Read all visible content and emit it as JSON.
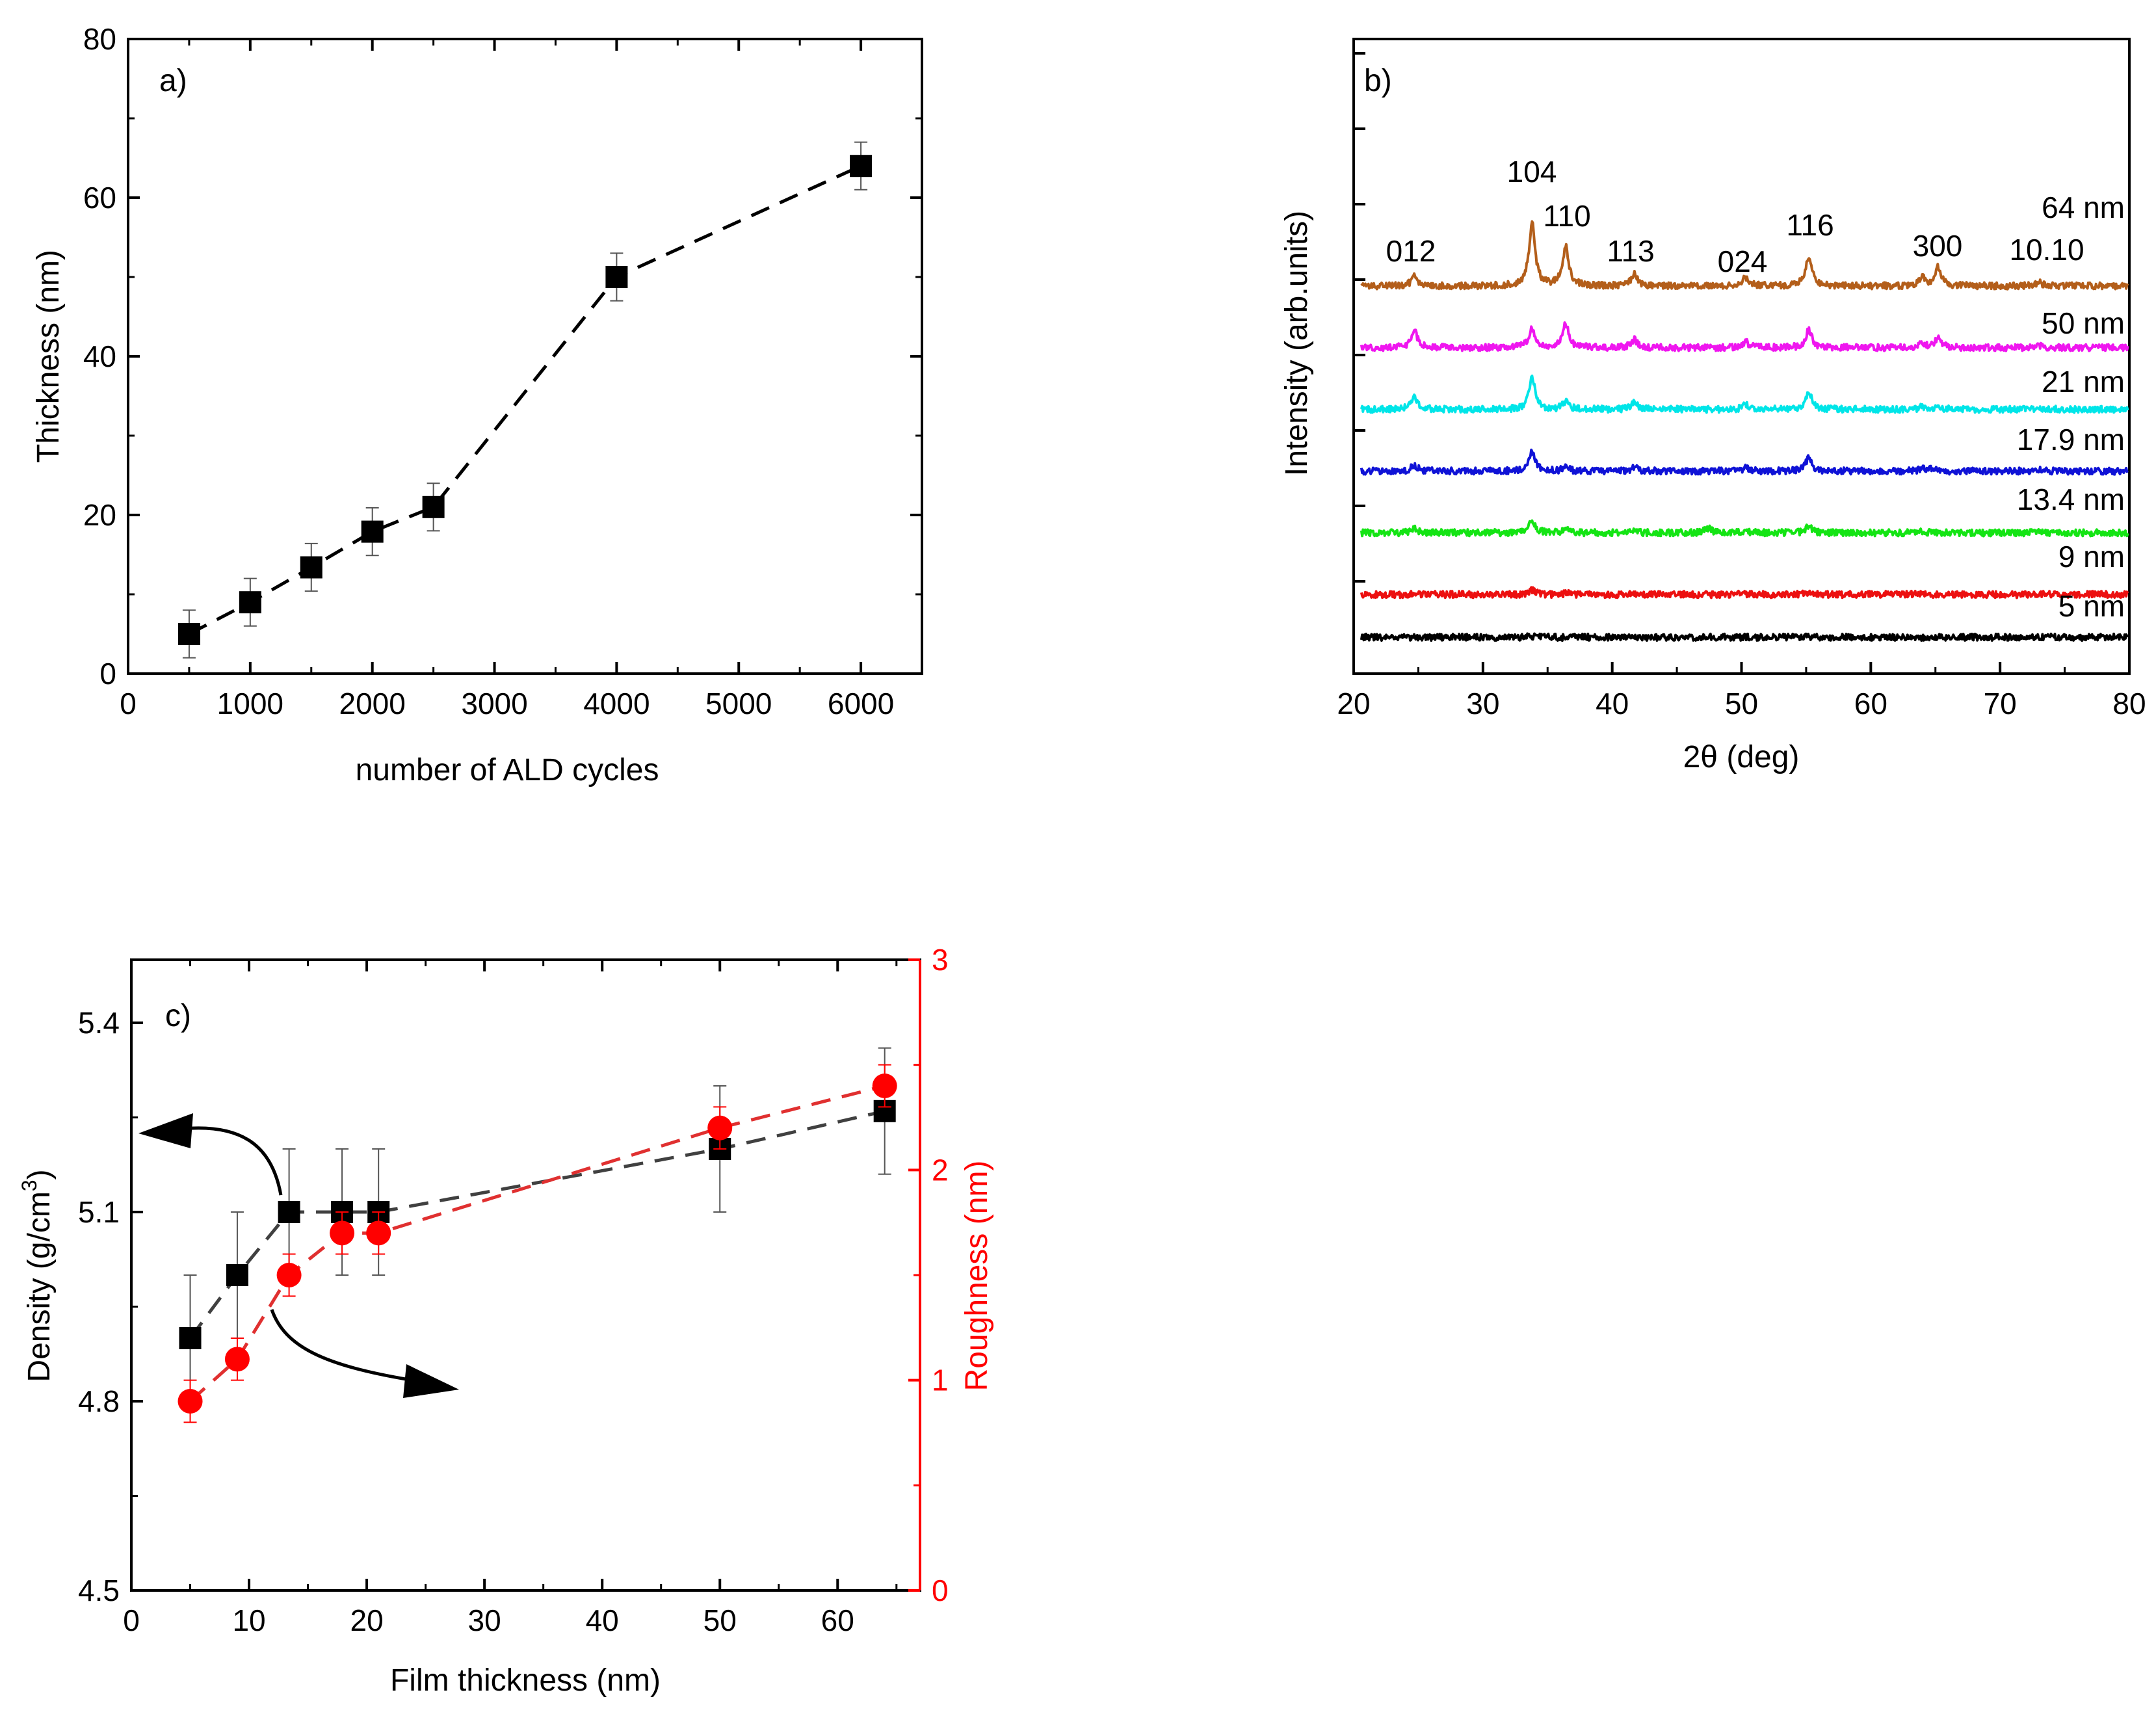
{
  "chart_data": [
    {
      "type": "line",
      "panel_label": "a)",
      "xlabel": "number of ALD cycles",
      "ylabel": "Thickness (nm)",
      "xlim": [
        0,
        6500
      ],
      "ylim": [
        0,
        80
      ],
      "xticks": [
        0,
        1000,
        2000,
        3000,
        4000,
        5000,
        6000
      ],
      "yticks": [
        0,
        20,
        40,
        60,
        80
      ],
      "line_style": "dashed",
      "marker": "square",
      "series": [
        {
          "name": "Thickness",
          "color": "#000000",
          "x": [
            500,
            1000,
            1500,
            2000,
            2500,
            4000,
            6000
          ],
          "y": [
            5,
            9,
            13.4,
            17.9,
            21,
            50,
            64
          ],
          "yerr": [
            3,
            3,
            3,
            3,
            3,
            3,
            3
          ]
        }
      ]
    },
    {
      "type": "line",
      "panel_label": "b)",
      "xlabel": "2θ (deg)",
      "ylabel": "Intensity (arb.units)",
      "xlim": [
        20,
        80
      ],
      "xticks": [
        20,
        30,
        40,
        50,
        60,
        70,
        80
      ],
      "ytick_count": 8,
      "peaks": [
        {
          "label": "012",
          "x": 24.7
        },
        {
          "label": "104",
          "x": 33.8
        },
        {
          "label": "110",
          "x": 36.4
        },
        {
          "label": "113",
          "x": 41.7
        },
        {
          "label": "024",
          "x": 50.3
        },
        {
          "label": "116",
          "x": 55.2
        },
        {
          "label": "300",
          "x": 64.0
        },
        {
          "label": "10.10",
          "x": 73.0
        }
      ],
      "series": [
        {
          "name": "64 nm",
          "color": "#b35e1a",
          "baseline": 7.4,
          "peak_heights": [
            1.5,
            9.5,
            6.0,
            1.8,
            1.2,
            4.5,
            1.2,
            0.6
          ],
          "extra_peaks": [
            [
              65.2,
              2.8
            ]
          ]
        },
        {
          "name": "50 nm",
          "color": "#ef16ef",
          "baseline": 6.1,
          "peak_heights": [
            2.5,
            3.0,
            3.6,
            1.2,
            0.9,
            2.7,
            0.7,
            0.3
          ],
          "extra_peaks": [
            [
              65.2,
              1.5
            ]
          ]
        },
        {
          "name": "21 nm",
          "color": "#00e5e8",
          "baseline": 4.8,
          "peak_heights": [
            2.0,
            4.8,
            1.1,
            1.0,
            0.7,
            2.6,
            0.4,
            0.2
          ],
          "extra_peaks": [
            [
              65.2,
              0.5
            ]
          ]
        },
        {
          "name": "17.9 nm",
          "color": "#0f12d6",
          "baseline": 3.5,
          "peak_heights": [
            0.9,
            3.0,
            0.6,
            0.6,
            0.5,
            2.0,
            0.3,
            0.2
          ],
          "extra_peaks": [
            [
              64.5,
              0.4
            ]
          ]
        },
        {
          "name": "13.4 nm",
          "color": "#14e414",
          "baseline": 2.2,
          "peak_heights": [
            0.6,
            1.9,
            0.4,
            0.3,
            0.3,
            1.0,
            0.3,
            0.1
          ],
          "extra_peaks": [
            [
              47.4,
              0.7
            ]
          ]
        },
        {
          "name": "9 nm",
          "color": "#ec1010",
          "baseline": 0.9,
          "peak_heights": [
            0.1,
            0.6,
            0.2,
            0.1,
            0.1,
            0.3,
            0.1,
            0.1
          ],
          "extra_peaks": []
        },
        {
          "name": "5 nm",
          "color": "#000000",
          "baseline": 0.0,
          "peak_heights": [
            0.0,
            0.1,
            0.0,
            0.0,
            0.0,
            0.1,
            0.0,
            0.0
          ],
          "extra_peaks": []
        }
      ]
    },
    {
      "type": "line",
      "panel_label": "c)",
      "xlabel": "Film thickness (nm)",
      "ylabel_left_main": "Density (g/cm",
      "ylabel_left_sup": "3",
      "ylabel_left_tail": ")",
      "ylabel_right": "Roughness (nm)",
      "xlim": [
        0,
        67
      ],
      "ylim_left": [
        4.5,
        5.5
      ],
      "ylim_right": [
        0,
        3
      ],
      "xticks": [
        0,
        10,
        20,
        30,
        40,
        50,
        60
      ],
      "yticks_left": [
        "4.5",
        "4.8",
        "5.1",
        "5.4"
      ],
      "yticks_right": [
        "0",
        "1",
        "2",
        "3"
      ],
      "left_axis_color": "#000000",
      "right_axis_color": "#ff0000",
      "series": [
        {
          "name": "Density",
          "axis": "left",
          "marker": "square",
          "color": "#000000",
          "line_color": "#404040",
          "x": [
            5,
            9,
            13.4,
            17.9,
            21,
            50,
            64
          ],
          "y": [
            4.9,
            5.0,
            5.1,
            5.1,
            5.1,
            5.2,
            5.26
          ],
          "yerr": [
            0.1,
            0.1,
            0.1,
            0.1,
            0.1,
            0.1,
            0.1
          ]
        },
        {
          "name": "Roughness",
          "axis": "right",
          "marker": "circle",
          "color": "#ff0000",
          "line_color": "#e03030",
          "x": [
            5,
            9,
            13.4,
            17.9,
            21,
            50,
            64
          ],
          "y": [
            0.9,
            1.1,
            1.5,
            1.7,
            1.7,
            2.2,
            2.4
          ],
          "yerr": [
            0.1,
            0.1,
            0.1,
            0.1,
            0.1,
            0.1,
            0.1
          ]
        }
      ]
    }
  ]
}
